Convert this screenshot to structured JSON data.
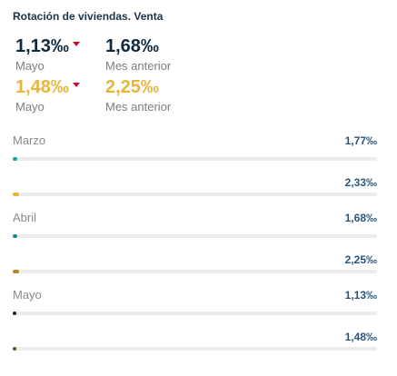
{
  "title": "Rotación de viviendas. Venta",
  "kpis": {
    "primary_current": {
      "value": "1,13‰",
      "label": "Mayo",
      "trend": "down",
      "color": "#0f2a40"
    },
    "primary_previous": {
      "value": "1,68‰",
      "label": "Mes anterior",
      "color": "#0f2a40"
    },
    "secondary_current": {
      "value": "1,48‰",
      "label": "Mayo",
      "trend": "down",
      "color": "#e8b53c"
    },
    "secondary_previous": {
      "value": "2,25‰",
      "label": "Mes anterior",
      "color": "#e8b53c"
    }
  },
  "chart_data": {
    "type": "bar",
    "categories": [
      "Marzo",
      "Abril",
      "Mayo"
    ],
    "series": [
      {
        "values": [
          1.77,
          1.68,
          1.13
        ],
        "labels": [
          "1,77‰",
          "1,68‰",
          "1,13‰"
        ],
        "colors": [
          "#1aa3a3",
          "#1a8a9a",
          "#0f2a40"
        ]
      },
      {
        "values": [
          2.33,
          2.25,
          1.48
        ],
        "labels": [
          "2,33‰",
          "2,25‰",
          "1,48‰"
        ],
        "colors": [
          "#e8b53c",
          "#b8862a",
          "#6b5418"
        ]
      }
    ]
  }
}
